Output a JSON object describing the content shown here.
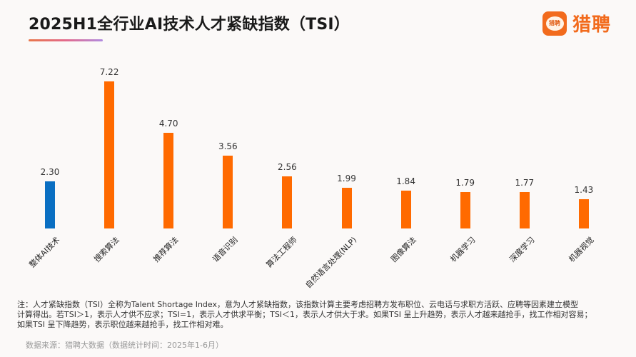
{
  "header": {
    "title": "2025H1全行业AI技术人才紧缺指数（TSI）",
    "logo_text": "猎聘",
    "logo_icon_text": "猎聘"
  },
  "colors": {
    "highlight": "#0a6fc2",
    "primary": "#ff6a00",
    "brand": "#f26b1d"
  },
  "chart_data": {
    "type": "bar",
    "title": "2025H1全行业AI技术人才紧缺指数（TSI）",
    "xlabel": "",
    "ylabel": "",
    "ylim": [
      0,
      8
    ],
    "grid": false,
    "legend": null,
    "categories": [
      "整体AI技术",
      "搜索算法",
      "推荐算法",
      "语音识别",
      "算法工程师",
      "自然语言处理(NLP)",
      "图像算法",
      "机器学习",
      "深度学习",
      "机器视觉"
    ],
    "values": [
      2.3,
      7.22,
      4.7,
      3.56,
      2.56,
      1.99,
      1.84,
      1.79,
      1.77,
      1.43
    ],
    "value_labels": [
      "2.30",
      "7.22",
      "4.70",
      "3.56",
      "2.56",
      "1.99",
      "1.84",
      "1.79",
      "1.77",
      "1.43"
    ],
    "bar_colors": [
      "#0a6fc2",
      "#ff6a00",
      "#ff6a00",
      "#ff6a00",
      "#ff6a00",
      "#ff6a00",
      "#ff6a00",
      "#ff6a00",
      "#ff6a00",
      "#ff6a00"
    ]
  },
  "footer": {
    "note_line1": "注：人才紧缺指数（TSI）全称为Talent Shortage Index，意为人才紧缺指数，该指数计算主要考虑招聘方发布职位、云电话与求职方活跃、应聘等因素建立模型",
    "note_line2": "计算得出。若TSI＞1，表示人才供不应求；TSI=1，表示人才供求平衡；TSI＜1，表示人才供大于求。如果TSI 呈上升趋势，表示人才越来越抢手，找工作相对容易；",
    "note_line3": "如果TSI 呈下降趋势，表示职位越来越抢手，找工作相对难。",
    "source": "数据来源：猎聘大数据（数据统计时间：2025年1-6月）"
  }
}
